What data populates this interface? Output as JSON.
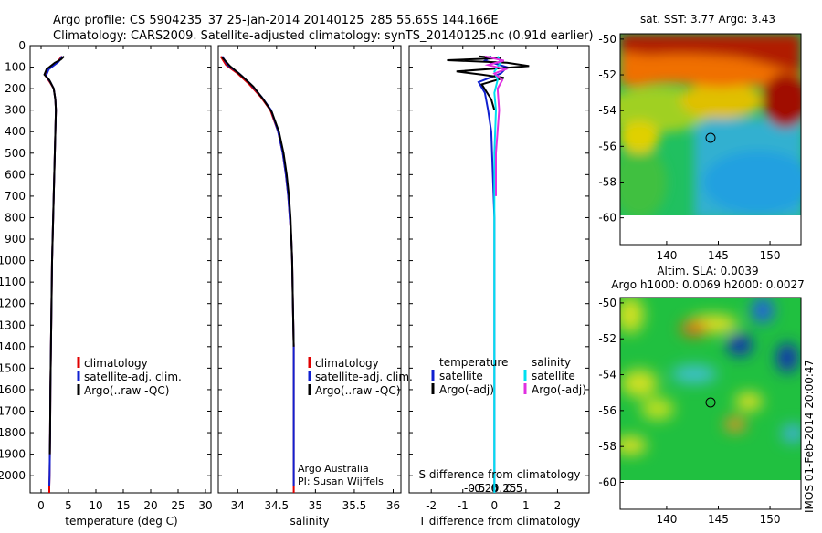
{
  "header": {
    "line1": "Argo profile: CS 5904235_37 25-Jan-2014 20140125_285 55.65S 144.166E",
    "line2": "Climatology: CARS2009. Satellite-adjusted climatology: synTS_20140125.nc (0.91d earlier)"
  },
  "colors": {
    "climatology": "#e00000",
    "satellite": "#1020d0",
    "argo": "#000000",
    "sal_satellite": "#00e0f0",
    "sal_argo": "#e030e0"
  },
  "chart_data": [
    {
      "type": "line",
      "id": "temperature",
      "xlabel": "temperature (deg C)",
      "ylabel": "",
      "xlim": [
        -2,
        31
      ],
      "ylim": [
        2080,
        0
      ],
      "xticks": [
        0,
        5,
        10,
        15,
        20,
        25,
        30
      ],
      "yticks": [
        0,
        100,
        200,
        300,
        400,
        500,
        600,
        700,
        800,
        900,
        1000,
        1100,
        1200,
        1300,
        1400,
        1500,
        1600,
        1700,
        1800,
        1900,
        2000
      ],
      "legend": [
        "climatology",
        "satellite-adj. clim.",
        "Argo(..raw -QC)"
      ],
      "series": [
        {
          "name": "climatology",
          "color_key": "climatology",
          "x": [
            3.8,
            3.0,
            1.2,
            0.8,
            1.6,
            2.3,
            2.6,
            2.7,
            2.6,
            2.5,
            2.4,
            2.3,
            2.2,
            2.1,
            2.0,
            1.9,
            1.8,
            1.7,
            1.65,
            1.6,
            1.55,
            1.5,
            1.5
          ],
          "y": [
            50,
            75,
            110,
            140,
            170,
            200,
            250,
            300,
            400,
            500,
            600,
            700,
            800,
            900,
            1000,
            1200,
            1400,
            1600,
            1800,
            1900,
            2000,
            2050,
            2080
          ]
        },
        {
          "name": "satellite-adj. clim.",
          "color_key": "satellite",
          "x": [
            3.9,
            3.2,
            1.4,
            0.9,
            1.7,
            2.3,
            2.6,
            2.7,
            2.6,
            2.5,
            2.4,
            2.3,
            2.2,
            2.1,
            2.0,
            1.9,
            1.8,
            1.7,
            1.65,
            1.6,
            1.55,
            1.5
          ],
          "y": [
            50,
            75,
            110,
            140,
            170,
            200,
            250,
            300,
            400,
            500,
            600,
            700,
            800,
            900,
            1000,
            1200,
            1400,
            1600,
            1800,
            1900,
            2000,
            2050
          ]
        },
        {
          "name": "Argo(..raw -QC)",
          "color_key": "argo",
          "x": [
            4.2,
            3.6,
            2.5,
            1.0,
            0.6,
            1.5,
            2.3,
            2.6,
            2.7,
            2.6,
            2.5,
            2.4,
            2.3,
            2.2,
            2.1,
            2.0,
            1.9,
            1.8,
            1.7,
            1.65,
            1.6
          ],
          "y": [
            50,
            65,
            80,
            110,
            135,
            160,
            200,
            250,
            300,
            400,
            500,
            600,
            700,
            800,
            900,
            1000,
            1200,
            1400,
            1600,
            1800,
            1900
          ]
        }
      ]
    },
    {
      "type": "line",
      "id": "salinity",
      "xlabel": "salinity",
      "ylabel": "",
      "xlim": [
        33.75,
        36.1
      ],
      "ylim": [
        2080,
        0
      ],
      "xticks": [
        34,
        34.5,
        35,
        35.5,
        36
      ],
      "legend": [
        "climatology",
        "satellite-adj. clim.",
        "Argo(..raw -QC)"
      ],
      "annotation": [
        "Argo Australia",
        "PI: Susan Wijffels"
      ],
      "series": [
        {
          "name": "climatology",
          "color_key": "climatology",
          "x": [
            33.78,
            33.85,
            34.0,
            34.15,
            34.3,
            34.42,
            34.52,
            34.58,
            34.62,
            34.65,
            34.67,
            34.69,
            34.7,
            34.71,
            34.72,
            34.72,
            34.72,
            34.72,
            34.72,
            34.72
          ],
          "y": [
            50,
            90,
            130,
            180,
            240,
            300,
            400,
            500,
            600,
            700,
            800,
            900,
            1000,
            1200,
            1400,
            1600,
            1800,
            2000,
            2050,
            2080
          ]
        },
        {
          "name": "satellite-adj. clim.",
          "color_key": "satellite",
          "x": [
            33.8,
            33.87,
            34.02,
            34.17,
            34.31,
            34.43,
            34.52,
            34.58,
            34.62,
            34.65,
            34.67,
            34.69,
            34.7,
            34.71,
            34.72,
            34.72,
            34.72,
            34.72,
            34.72
          ],
          "y": [
            50,
            90,
            130,
            180,
            240,
            300,
            400,
            500,
            600,
            700,
            800,
            900,
            1000,
            1200,
            1400,
            1600,
            1800,
            2000,
            2050
          ]
        },
        {
          "name": "Argo(..raw -QC)",
          "color_key": "argo",
          "x": [
            33.8,
            33.9,
            34.05,
            34.2,
            34.33,
            34.44,
            34.53,
            34.59,
            34.63,
            34.66,
            34.68,
            34.69,
            34.7,
            34.71,
            34.72
          ],
          "y": [
            55,
            95,
            140,
            190,
            250,
            310,
            400,
            500,
            600,
            700,
            800,
            900,
            1000,
            1200,
            1400
          ]
        }
      ]
    },
    {
      "type": "line",
      "id": "differences",
      "xlabel": "T difference from climatology",
      "xlabel_top": "S difference from climatology",
      "xlim": [
        -2.7,
        3.0
      ],
      "ylim": [
        2080,
        0
      ],
      "xticks": [
        -2,
        -1,
        0,
        1,
        2
      ],
      "xticks_s": [
        -0.5,
        -0.25,
        0,
        0.25,
        0.5
      ],
      "legend_titles": [
        "temperature",
        "salinity"
      ],
      "legend": [
        "satellite",
        "Argo(-adj)",
        "satellite",
        "Argo(-adj)"
      ],
      "series": [
        {
          "name": "temperature satellite",
          "color_key": "satellite",
          "x": [
            -0.1,
            -0.3,
            0.4,
            0.2,
            -0.5,
            -0.3,
            -0.2,
            -0.1,
            -0.05,
            0,
            0,
            0
          ],
          "y": [
            50,
            70,
            100,
            130,
            170,
            220,
            300,
            400,
            600,
            800,
            1200,
            2080
          ]
        },
        {
          "name": "temperature Argo(-adj)",
          "color_key": "argo",
          "x": [
            -0.5,
            0.2,
            -1.5,
            0.4,
            1.1,
            0.2,
            -1.2,
            -0.4,
            0.3,
            -0.4,
            -0.1,
            0
          ],
          "y": [
            50,
            58,
            68,
            80,
            95,
            105,
            120,
            135,
            150,
            180,
            250,
            300
          ]
        },
        {
          "name": "salinity satellite",
          "color_key": "sal_satellite",
          "x": [
            0.1,
            0.2,
            0.0,
            0.1,
            0.0,
            0.05,
            0.0,
            0.0,
            0.0
          ],
          "y": [
            50,
            80,
            120,
            160,
            220,
            300,
            500,
            1000,
            2080
          ]
        },
        {
          "name": "salinity Argo(-adj)",
          "color_key": "sal_argo",
          "x": [
            -0.3,
            0.3,
            -0.2,
            0.35,
            0.0,
            0.25,
            0.1,
            0.15,
            0.05,
            0.05
          ],
          "y": [
            50,
            70,
            90,
            110,
            130,
            160,
            200,
            300,
            500,
            700
          ]
        }
      ]
    },
    {
      "type": "heatmap",
      "id": "sst-map",
      "title": "sat. SST: 3.77 Argo: 3.43",
      "xlim": [
        135.5,
        153
      ],
      "ylim": [
        -61.5,
        -49.7
      ],
      "xticks": [
        140,
        145,
        150
      ],
      "yticks": [
        -50,
        -52,
        -54,
        -56,
        -58,
        -60
      ],
      "argo_position": {
        "lon": 144.166,
        "lat": -55.65
      }
    },
    {
      "type": "heatmap",
      "id": "sla-map",
      "title": "Altim. SLA: 0.0039",
      "subtitle": "Argo h1000: 0.0069 h2000: 0.0027",
      "xlim": [
        135.5,
        153
      ],
      "ylim": [
        -61.5,
        -49.7
      ],
      "xticks": [
        140,
        145,
        150
      ],
      "yticks": [
        -50,
        -52,
        -54,
        -56,
        -58,
        -60
      ],
      "argo_position": {
        "lon": 144.166,
        "lat": -55.65
      }
    }
  ],
  "side_label": "IMOS 01-Feb-2014 20:00:47"
}
